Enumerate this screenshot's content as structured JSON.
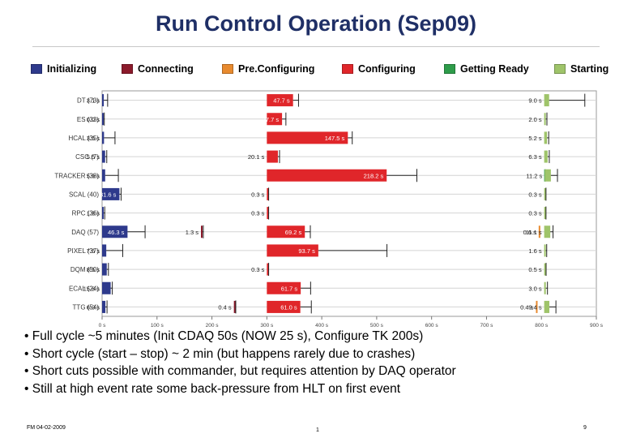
{
  "slide": {
    "title": "Run Control Operation (Sep09)",
    "footer_left": "FM 04-02-2009",
    "footer_center": "1",
    "footer_right": "9"
  },
  "bullets": [
    "• Full cycle ~5 minutes (Init CDAQ 50s (NOW 25 s), Configure TK 200s)",
    "• Short cycle (start – stop) ~ 2 min (but happens rarely due to crashes)",
    "• Short cuts possible with commander, but requires attention by DAQ operator",
    "• Still at high event rate some back-pressure from HLT on first event"
  ],
  "chart_data": {
    "type": "bar",
    "orientation": "horizontal",
    "legend_position": "top",
    "grid": true,
    "xlim": [
      0,
      900
    ],
    "x_ticks": [
      "0 s",
      "100 s",
      "200 s",
      "300 s",
      "400 s",
      "500 s",
      "600 s",
      "700 s",
      "800 s",
      "900 s"
    ],
    "phases": [
      {
        "name": "Initializing",
        "color": "#2e3a8c"
      },
      {
        "name": "Connecting",
        "color": "#8b1a2b"
      },
      {
        "name": "Pre.Configuring",
        "color": "#e88a2e"
      },
      {
        "name": "Configuring",
        "color": "#e0262a"
      },
      {
        "name": "Getting Ready",
        "color": "#2e9c4a"
      },
      {
        "name": "Starting",
        "color": "#9fc46a"
      }
    ],
    "categories": [
      "DT (73)",
      "ES (33)",
      "HCAL (35)",
      "CSC (7)",
      "TRACKER (38)",
      "SCAL (40)",
      "RPC (36)",
      "DAQ (57)",
      "PIXEL (37)",
      "DQM (50)",
      "ECAL (24)",
      "TTG (54)"
    ],
    "segments": [
      [
        {
          "phase": "Initializing",
          "start": 0,
          "duration": 3.1,
          "label": "3.1 s",
          "err": 7
        },
        {
          "phase": "Configuring",
          "start": 300,
          "duration": 47.7,
          "label": "47.7 s",
          "err": 10
        },
        {
          "phase": "Starting",
          "start": 805,
          "duration": 9.0,
          "label": "9.0 s",
          "err": 65
        }
      ],
      [
        {
          "phase": "Initializing",
          "start": 0,
          "duration": 0.0,
          "label": "0.0 s",
          "err": 4
        },
        {
          "phase": "Configuring",
          "start": 300,
          "duration": 27.7,
          "label": "27.7 s",
          "err": 7
        },
        {
          "phase": "Starting",
          "start": 805,
          "duration": 2.0,
          "label": "2.0 s",
          "err": 3
        }
      ],
      [
        {
          "phase": "Initializing",
          "start": 0,
          "duration": 3.5,
          "label": "3.5 s",
          "err": 20
        },
        {
          "phase": "Configuring",
          "start": 300,
          "duration": 147.5,
          "label": "147.5 s",
          "err": 8
        },
        {
          "phase": "Starting",
          "start": 805,
          "duration": 5.2,
          "label": "5.2 s",
          "err": 3
        }
      ],
      [
        {
          "phase": "Initializing",
          "start": 0,
          "duration": 5.5,
          "label": "5.5 s",
          "err": 3
        },
        {
          "phase": "Configuring",
          "start": 300,
          "duration": 20.1,
          "label": "20.1 s",
          "err": 3
        },
        {
          "phase": "Starting",
          "start": 805,
          "duration": 6.3,
          "label": "6.3 s",
          "err": 3
        }
      ],
      [
        {
          "phase": "Initializing",
          "start": 0,
          "duration": 5.6,
          "label": "5.6 s",
          "err": 24
        },
        {
          "phase": "Configuring",
          "start": 300,
          "duration": 218.2,
          "label": "218.2 s",
          "err": 55
        },
        {
          "phase": "Getting Ready",
          "start": 805,
          "duration": 0.5,
          "label": "",
          "err": 0
        },
        {
          "phase": "Starting",
          "start": 806,
          "duration": 11.2,
          "label": "11.2 s",
          "err": 12
        }
      ],
      [
        {
          "phase": "Initializing",
          "start": 0,
          "duration": 31.6,
          "label": "31.6 s",
          "err": 3
        },
        {
          "phase": "Configuring",
          "start": 300,
          "duration": 0.3,
          "label": "0.3 s",
          "err": 3
        },
        {
          "phase": "Starting",
          "start": 805,
          "duration": 0.3,
          "label": "0.3 s",
          "err": 3
        }
      ],
      [
        {
          "phase": "Initializing",
          "start": 0,
          "duration": 1.8,
          "label": "1.8 s",
          "err": 3
        },
        {
          "phase": "Configuring",
          "start": 300,
          "duration": 0.3,
          "label": "0.3 s",
          "err": 3
        },
        {
          "phase": "Starting",
          "start": 805,
          "duration": 0.3,
          "label": "0.3 s",
          "err": 3
        }
      ],
      [
        {
          "phase": "Initializing",
          "start": 0,
          "duration": 46.3,
          "label": "46.3 s",
          "err": 32
        },
        {
          "phase": "Connecting",
          "start": 180,
          "duration": 1.3,
          "label": "1.3 s",
          "err": 3
        },
        {
          "phase": "Configuring",
          "start": 300,
          "duration": 69.2,
          "label": "69.2 s",
          "err": 10
        },
        {
          "phase": "Pre.Configuring",
          "start": 795,
          "duration": 0.6,
          "label": "0.6 s",
          "err": 0
        },
        {
          "phase": "Starting",
          "start": 805,
          "duration": 11.1,
          "label": "11.1 s",
          "err": 5
        }
      ],
      [
        {
          "phase": "Initializing",
          "start": 0,
          "duration": 7.6,
          "label": "7.6 s",
          "err": 30
        },
        {
          "phase": "Configuring",
          "start": 300,
          "duration": 93.7,
          "label": "93.7 s",
          "err": 125
        },
        {
          "phase": "Starting",
          "start": 805,
          "duration": 1.6,
          "label": "1.6 s",
          "err": 3
        }
      ],
      [
        {
          "phase": "Initializing",
          "start": 0,
          "duration": 8.5,
          "label": "8.5 s",
          "err": 3
        },
        {
          "phase": "Configuring",
          "start": 300,
          "duration": 0.3,
          "label": "0.3 s",
          "err": 3
        },
        {
          "phase": "Starting",
          "start": 805,
          "duration": 0.5,
          "label": "0.5 s",
          "err": 3
        }
      ],
      [
        {
          "phase": "Initializing",
          "start": 0,
          "duration": 15.6,
          "label": "15.6 s",
          "err": 3
        },
        {
          "phase": "Configuring",
          "start": 300,
          "duration": 61.7,
          "label": "61.7 s",
          "err": 18
        },
        {
          "phase": "Starting",
          "start": 805,
          "duration": 3.0,
          "label": "3.0 s",
          "err": 3
        }
      ],
      [
        {
          "phase": "Initializing",
          "start": 0,
          "duration": 6.0,
          "label": "6.0 s",
          "err": 3
        },
        {
          "phase": "Connecting",
          "start": 240,
          "duration": 0.4,
          "label": "0.4 s",
          "err": 3
        },
        {
          "phase": "Configuring",
          "start": 300,
          "duration": 61.0,
          "label": "61.0 s",
          "err": 20
        },
        {
          "phase": "Pre.Configuring",
          "start": 790,
          "duration": 0.4,
          "label": "0.4 s",
          "err": 0
        },
        {
          "phase": "Starting",
          "start": 805,
          "duration": 9.4,
          "label": "9.4 s",
          "err": 12
        }
      ]
    ]
  }
}
